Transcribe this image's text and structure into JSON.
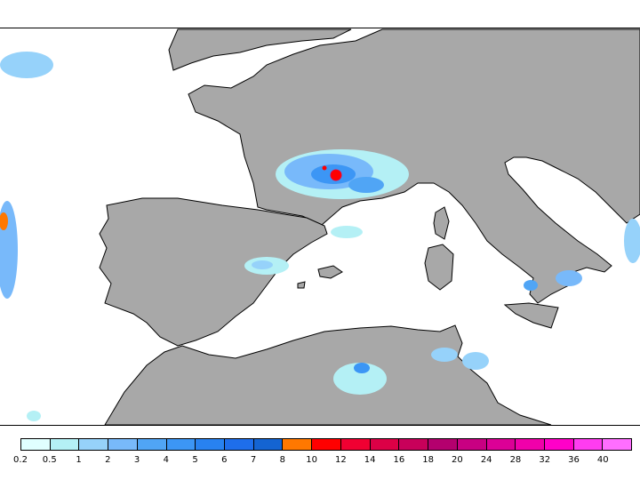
{
  "map": {
    "land_color": "#A8A8A8",
    "sea_color": "#FFFFFF",
    "coast_color": "#000000"
  },
  "legend": {
    "labels": [
      "0.2",
      "0.5",
      "1",
      "2",
      "3",
      "4",
      "5",
      "6",
      "7",
      "8",
      "10",
      "12",
      "14",
      "16",
      "18",
      "20",
      "24",
      "28",
      "32",
      "36",
      "40"
    ],
    "colors": [
      "#E0FFFF",
      "#B4F0F5",
      "#96D2FA",
      "#78B9FA",
      "#50A5F5",
      "#3C96F5",
      "#2882F0",
      "#1E6EEB",
      "#1464D2",
      "#FF7800",
      "#FF0000",
      "#F00032",
      "#DC0046",
      "#C8005A",
      "#B4006E",
      "#C80082",
      "#DC0096",
      "#F000AA",
      "#FF00C8",
      "#FF3CF0",
      "#FF6EFF"
    ]
  }
}
